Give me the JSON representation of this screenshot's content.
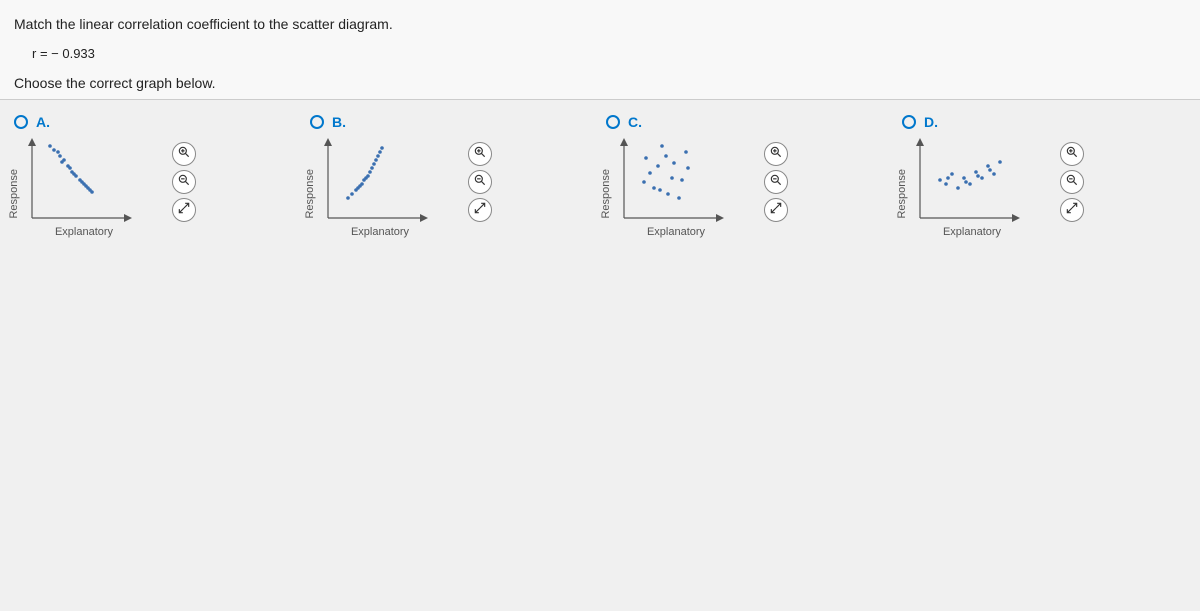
{
  "question": {
    "prompt": "Match the linear correlation coefficient to the scatter diagram.",
    "r_equation": "r = − 0.933",
    "instruction": "Choose the correct graph below."
  },
  "axis": {
    "x_label": "Explanatory",
    "y_label": "Response"
  },
  "plot_style": {
    "width": 110,
    "height": 90,
    "axis_color": "#555",
    "point_color": "#3a6fb0",
    "point_radius": 1.8,
    "arrow_size": 5
  },
  "choices": [
    {
      "id": "A",
      "label": "A.",
      "points": [
        [
          18,
          72
        ],
        [
          22,
          68
        ],
        [
          26,
          66
        ],
        [
          28,
          62
        ],
        [
          32,
          58
        ],
        [
          30,
          56
        ],
        [
          36,
          52
        ],
        [
          38,
          50
        ],
        [
          40,
          46
        ],
        [
          44,
          42
        ],
        [
          42,
          44
        ],
        [
          48,
          38
        ],
        [
          50,
          36
        ],
        [
          52,
          34
        ],
        [
          56,
          30
        ],
        [
          58,
          28
        ],
        [
          60,
          26
        ],
        [
          54,
          32
        ]
      ]
    },
    {
      "id": "B",
      "label": "B.",
      "points": [
        [
          20,
          20
        ],
        [
          24,
          24
        ],
        [
          28,
          28
        ],
        [
          30,
          30
        ],
        [
          34,
          34
        ],
        [
          36,
          38
        ],
        [
          40,
          42
        ],
        [
          42,
          46
        ],
        [
          44,
          50
        ],
        [
          46,
          54
        ],
        [
          48,
          58
        ],
        [
          50,
          62
        ],
        [
          52,
          66
        ],
        [
          54,
          70
        ],
        [
          38,
          40
        ],
        [
          32,
          32
        ]
      ]
    },
    {
      "id": "C",
      "label": "C.",
      "points": [
        [
          22,
          60
        ],
        [
          30,
          30
        ],
        [
          38,
          72
        ],
        [
          44,
          24
        ],
        [
          50,
          55
        ],
        [
          58,
          38
        ],
        [
          26,
          45
        ],
        [
          62,
          66
        ],
        [
          34,
          52
        ],
        [
          48,
          40
        ],
        [
          55,
          20
        ],
        [
          42,
          62
        ],
        [
          20,
          36
        ],
        [
          64,
          50
        ],
        [
          36,
          28
        ]
      ]
    },
    {
      "id": "D",
      "label": "D.",
      "points": [
        [
          20,
          38
        ],
        [
          26,
          34
        ],
        [
          32,
          44
        ],
        [
          38,
          30
        ],
        [
          44,
          40
        ],
        [
          50,
          34
        ],
        [
          56,
          46
        ],
        [
          62,
          40
        ],
        [
          68,
          52
        ],
        [
          74,
          44
        ],
        [
          80,
          56
        ],
        [
          28,
          40
        ],
        [
          46,
          36
        ],
        [
          58,
          42
        ],
        [
          70,
          48
        ]
      ]
    }
  ],
  "tools": {
    "zoom_in": "zoom-in-icon",
    "zoom_out": "zoom-out-icon",
    "expand": "expand-icon"
  }
}
